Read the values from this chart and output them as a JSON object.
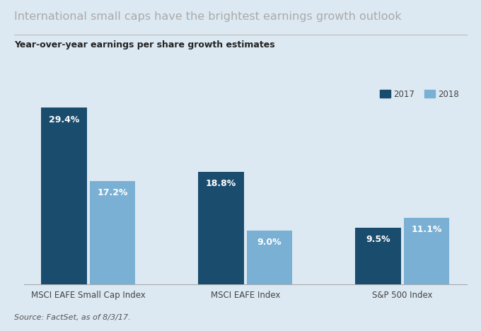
{
  "title": "International small caps have the brightest earnings growth outlook",
  "subtitle": "Year-over-year earnings per share growth estimates",
  "source": "Source: FactSet, as of 8/3/17.",
  "categories": [
    "MSCI EAFE Small Cap Index",
    "MSCI EAFE Index",
    "S&P 500 Index"
  ],
  "series_2017": [
    29.4,
    18.8,
    9.5
  ],
  "series_2018": [
    17.2,
    9.0,
    11.1
  ],
  "labels_2017": [
    "29.4%",
    "18.8%",
    "9.5%"
  ],
  "labels_2018": [
    "17.2%",
    "9.0%",
    "11.1%"
  ],
  "color_2017": "#1a4c6e",
  "color_2018": "#7ab0d4",
  "background_color": "#dce9f2",
  "ylim": [
    0,
    33
  ],
  "bar_width": 0.32,
  "legend_labels": [
    "2017",
    "2018"
  ],
  "title_fontsize": 11.5,
  "title_color": "#aaaaaa",
  "subtitle_fontsize": 9,
  "source_fontsize": 8,
  "label_fontsize": 9,
  "tick_fontsize": 8.5
}
